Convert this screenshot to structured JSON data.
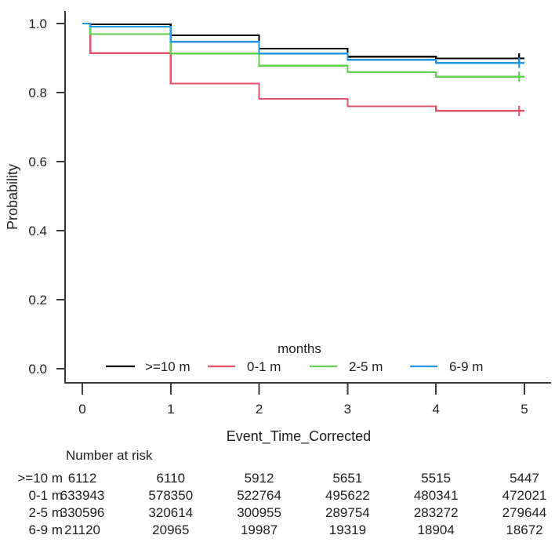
{
  "figure": {
    "background": "#ffffff",
    "text_color": "#1f1f1f",
    "axis_color": "#3a3a3a"
  },
  "chart_data": {
    "type": "line",
    "subtype": "kaplan-meier-step",
    "title": "",
    "xlabel": "Event_Time_Corrected",
    "ylabel": "Probability",
    "xlim": [
      0,
      5
    ],
    "ylim": [
      0.0,
      1.0
    ],
    "xticks": [
      "0",
      "1",
      "2",
      "3",
      "4",
      "5"
    ],
    "yticks": [
      "1.0",
      "0.8",
      "0.6",
      "0.4",
      "0.2",
      "0.0"
    ],
    "ytick_values": [
      1.0,
      0.8,
      0.6,
      0.4,
      0.2,
      0.0
    ],
    "xtick_values": [
      0,
      1,
      2,
      3,
      4,
      5
    ],
    "grid": "off",
    "legend": {
      "title": "months",
      "position": "inside-bottom-horizontal",
      "entries": [
        {
          "label": ">=10 m",
          "color": "#000000"
        },
        {
          "label": "0-1 m",
          "color": "#DF536B"
        },
        {
          "label": "2-5 m",
          "color": "#61D04F"
        },
        {
          "label": "6-9 m",
          "color": "#2297E6"
        }
      ]
    },
    "series": [
      {
        "name": ">=10 m",
        "color": "#000000",
        "steps": [
          [
            0,
            1.0
          ],
          [
            0.09,
            0.998
          ],
          [
            1,
            0.966
          ],
          [
            2,
            0.927
          ],
          [
            3,
            0.904
          ],
          [
            4,
            0.899
          ]
        ],
        "end_time": 5,
        "censor": {
          "t": 4.94,
          "p": 0.899
        }
      },
      {
        "name": "0-1 m",
        "color": "#DF536B",
        "steps": [
          [
            0,
            1.0
          ],
          [
            0.09,
            0.914
          ],
          [
            1,
            0.826
          ],
          [
            2,
            0.782
          ],
          [
            3,
            0.76
          ],
          [
            4,
            0.747
          ]
        ],
        "end_time": 5,
        "censor": {
          "t": 4.94,
          "p": 0.747
        }
      },
      {
        "name": "2-5 m",
        "color": "#61D04F",
        "steps": [
          [
            0,
            1.0
          ],
          [
            0.09,
            0.969
          ],
          [
            1,
            0.913
          ],
          [
            2,
            0.878
          ],
          [
            3,
            0.859
          ],
          [
            4,
            0.846
          ]
        ],
        "end_time": 5,
        "censor": {
          "t": 4.94,
          "p": 0.846
        }
      },
      {
        "name": "6-9 m",
        "color": "#2297E6",
        "steps": [
          [
            0,
            1.0
          ],
          [
            0.09,
            0.991
          ],
          [
            1,
            0.947
          ],
          [
            2,
            0.913
          ],
          [
            3,
            0.895
          ],
          [
            4,
            0.886
          ]
        ],
        "end_time": 5,
        "censor": {
          "t": 4.94,
          "p": 0.886
        }
      }
    ]
  },
  "risk_table": {
    "title": "Number at risk",
    "time_points": [
      0,
      1,
      2,
      3,
      4,
      5
    ],
    "rows": [
      {
        "label": ">=10 m",
        "values": [
          "6112",
          "6110",
          "5912",
          "5651",
          "5515",
          "5447"
        ]
      },
      {
        "label": "0-1 m",
        "values": [
          "633943",
          "578350",
          "522764",
          "495622",
          "480341",
          "472021"
        ]
      },
      {
        "label": "2-5 m",
        "values": [
          "330596",
          "320614",
          "300955",
          "289754",
          "283272",
          "279644"
        ]
      },
      {
        "label": "6-9 m",
        "values": [
          "21120",
          "20965",
          "19987",
          "19319",
          "18904",
          "18672"
        ]
      }
    ]
  }
}
